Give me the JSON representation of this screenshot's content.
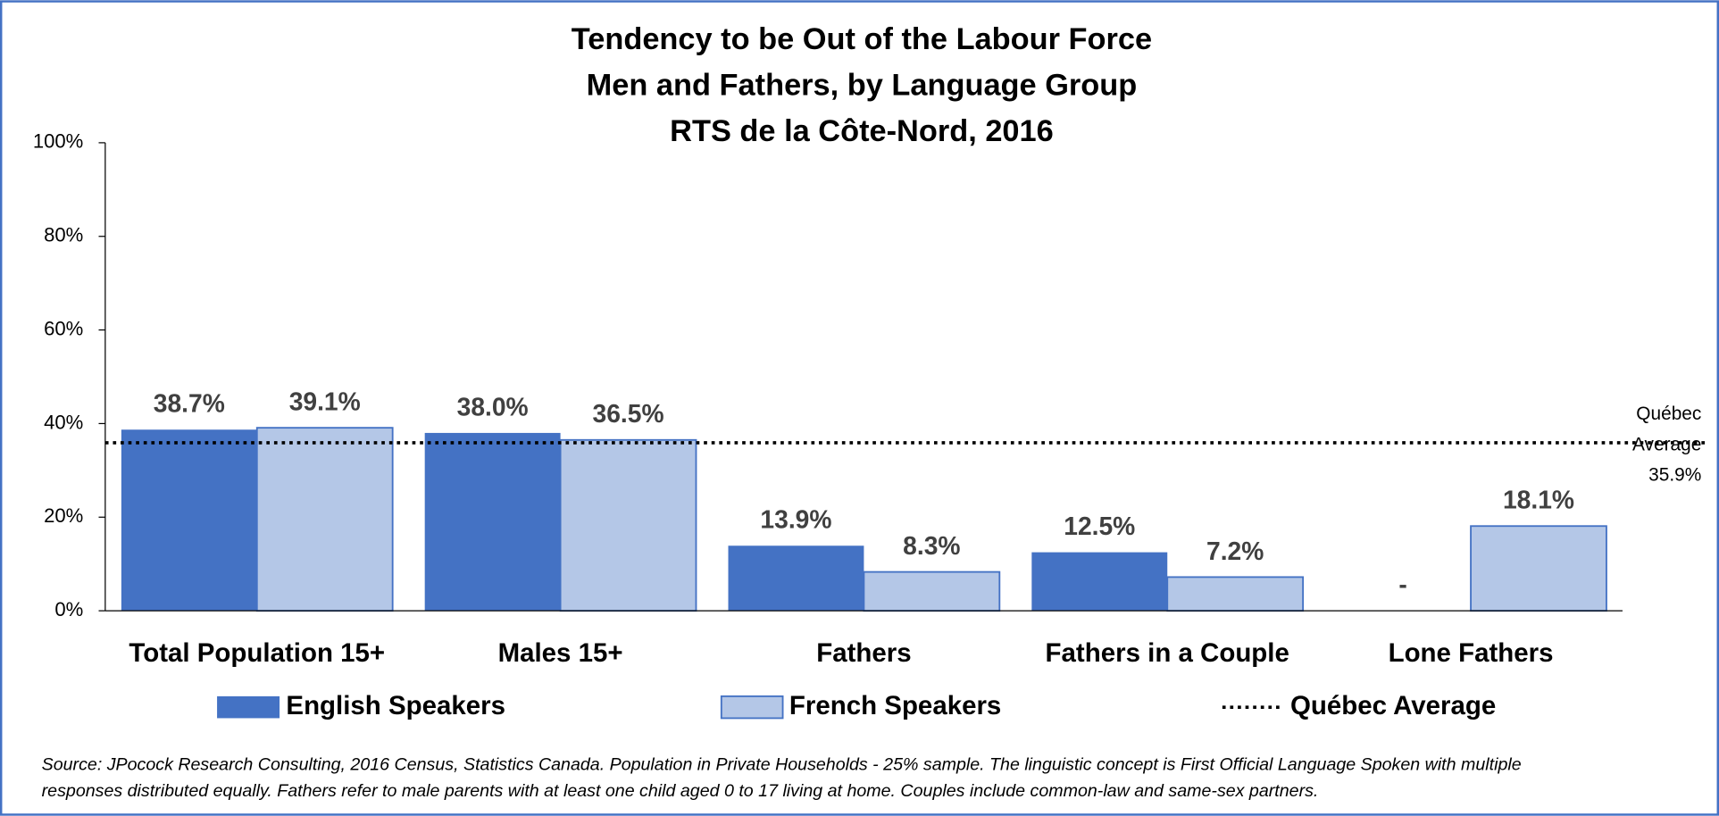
{
  "chart_data": {
    "type": "bar",
    "title": [
      "Tendency to be Out of the Labour Force",
      "Men and Fathers, by Language Group",
      "RTS de la Côte-Nord, 2016"
    ],
    "categories": [
      "Total Population 15+",
      "Males 15+",
      "Fathers",
      "Fathers in a Couple",
      "Lone Fathers"
    ],
    "series": [
      {
        "name": "English Speakers",
        "color": "#4472c4",
        "values": [
          38.7,
          38.0,
          13.9,
          12.5,
          null
        ],
        "value_labels": [
          "38.7%",
          "38.0%",
          "13.9%",
          "12.5%",
          "-"
        ]
      },
      {
        "name": "French Speakers",
        "color": "#b4c7e7",
        "values": [
          39.1,
          36.5,
          8.3,
          7.2,
          18.1
        ],
        "value_labels": [
          "39.1%",
          "36.5%",
          "8.3%",
          "7.2%",
          "18.1%"
        ]
      }
    ],
    "reference_line": {
      "name": "Québec Average",
      "value": 35.9,
      "annotation": [
        "Québec",
        "Average",
        "35.9%"
      ]
    },
    "ylim": [
      0,
      100
    ],
    "yticks": [
      {
        "value": 0,
        "label": "0%"
      },
      {
        "value": 20,
        "label": "20%"
      },
      {
        "value": 40,
        "label": "40%"
      },
      {
        "value": 60,
        "label": "60%"
      },
      {
        "value": 80,
        "label": "80%"
      },
      {
        "value": 100,
        "label": "100%"
      }
    ],
    "grid": false,
    "legend": "bottom",
    "footnote": [
      "Source: JPocock Research Consulting, 2016 Census, Statistics Canada. Population in Private Households - 25% sample. The linguistic concept is First Official Language Spoken with multiple",
      "responses distributed equally. Fathers refer to male parents with at least one child aged 0 to 17 living at home. Couples include common-law and same-sex partners."
    ]
  }
}
